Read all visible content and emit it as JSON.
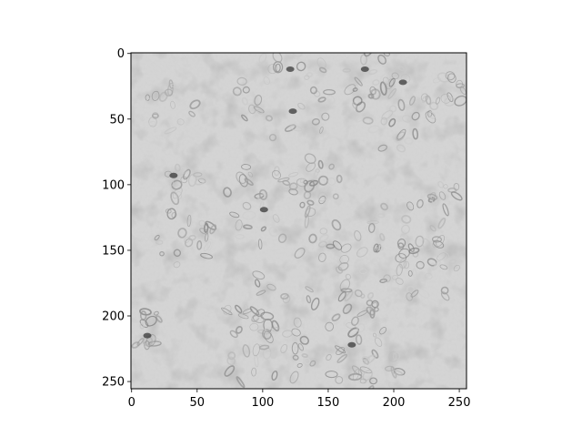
{
  "chart_data": {
    "type": "heatmap",
    "title": "",
    "xlabel": "",
    "ylabel": "",
    "xlim": [
      0,
      255
    ],
    "ylim": [
      255,
      0
    ],
    "colormap": "gray",
    "background_gray": "#d6d6d6",
    "x_ticks": [
      0,
      50,
      100,
      150,
      200,
      250
    ],
    "y_ticks": [
      0,
      50,
      100,
      150,
      200,
      250
    ],
    "grid": false,
    "legend": false
  }
}
